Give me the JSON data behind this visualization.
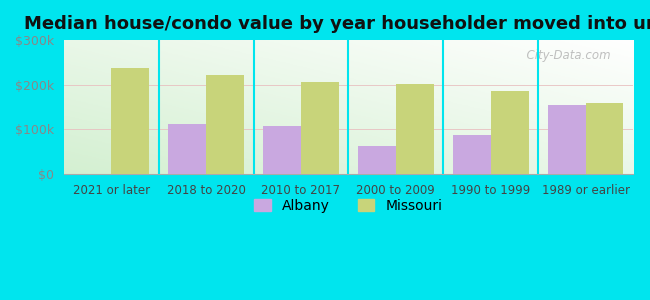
{
  "title": "Median house/condo value by year householder moved into unit",
  "categories": [
    "2021 or later",
    "2018 to 2020",
    "2010 to 2017",
    "2000 to 2009",
    "1990 to 1999",
    "1989 or earlier"
  ],
  "albany": [
    0,
    112000,
    107000,
    63000,
    87000,
    155000
  ],
  "missouri": [
    238000,
    222000,
    207000,
    201000,
    187000,
    160000
  ],
  "albany_color": "#c9a8e0",
  "missouri_color": "#c8d47a",
  "background_outer": "#00e5ee",
  "ylim": [
    0,
    300000
  ],
  "yticks": [
    0,
    100000,
    200000,
    300000
  ],
  "bar_width": 0.4,
  "legend_labels": [
    "Albany",
    "Missouri"
  ],
  "watermark": "  City-Data.com",
  "separator_color": "#00e5ee",
  "title_fontsize": 13,
  "tick_fontsize": 8.5
}
